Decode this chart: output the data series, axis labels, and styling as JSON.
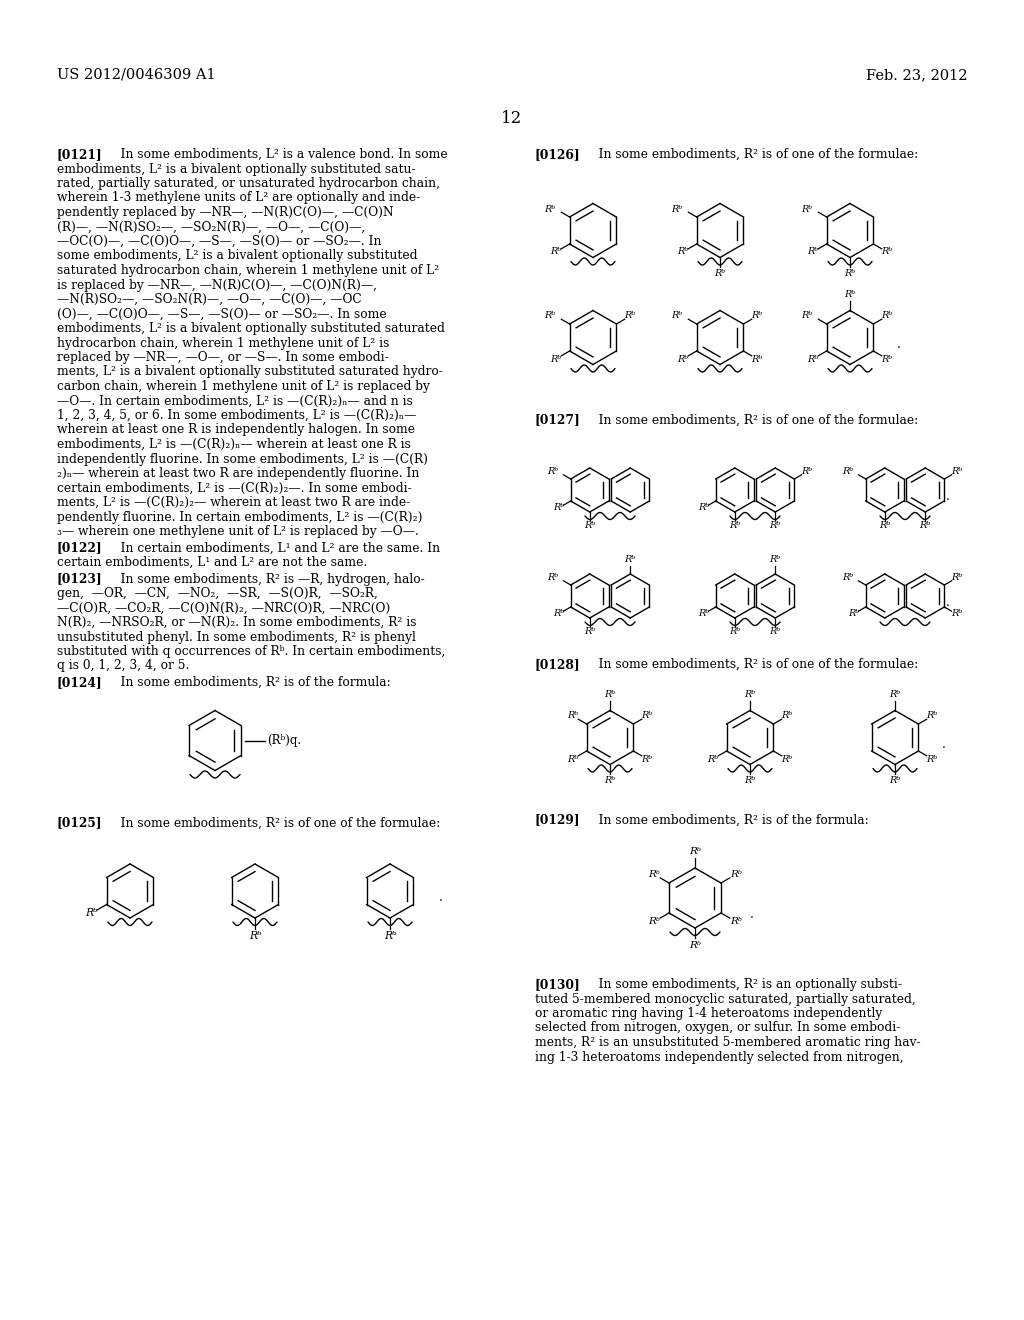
{
  "header_left": "US 2012/0046309 A1",
  "header_right": "Feb. 23, 2012",
  "page_number": "12",
  "background_color": "#ffffff",
  "text_color": "#000000"
}
